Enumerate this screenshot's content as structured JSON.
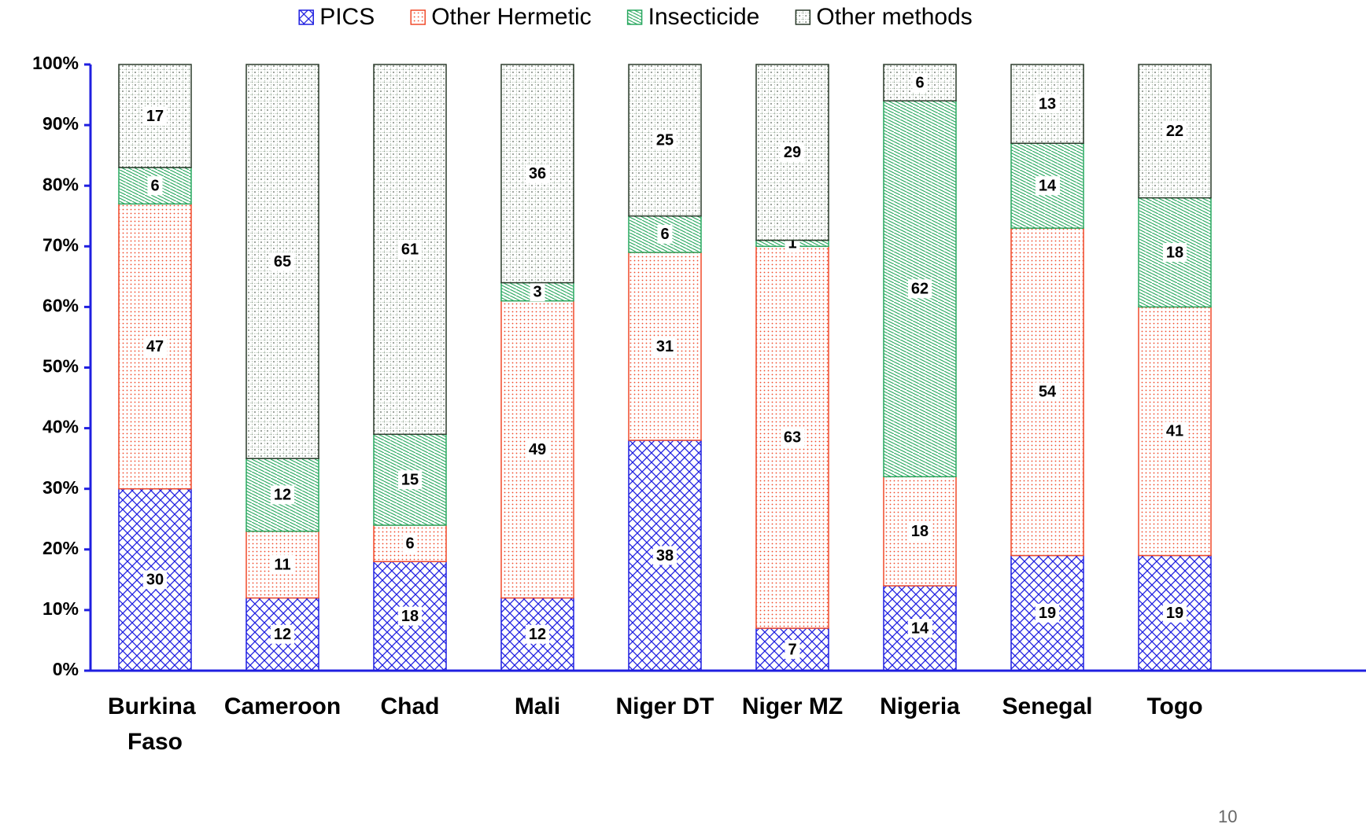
{
  "chart_data": {
    "type": "stacked_bar",
    "categories": [
      "Burkina Faso",
      "Cameroon",
      "Chad",
      "Mali",
      "Niger DT",
      "Niger MZ",
      "Nigeria",
      "Senegal",
      "Togo"
    ],
    "series": [
      {
        "name": "PICS",
        "color": "#1f1fe0",
        "values": [
          30,
          12,
          18,
          12,
          38,
          7,
          14,
          19,
          19
        ]
      },
      {
        "name": "Other Hermetic",
        "color": "#f04a2a",
        "values": [
          47,
          11,
          6,
          49,
          31,
          63,
          18,
          54,
          41
        ]
      },
      {
        "name": "Insecticide",
        "color": "#2aa860",
        "values": [
          6,
          12,
          15,
          3,
          6,
          1,
          62,
          14,
          18
        ]
      },
      {
        "name": "Other methods",
        "color": "#2a3a2a",
        "values": [
          17,
          65,
          61,
          36,
          25,
          29,
          6,
          13,
          22
        ]
      }
    ],
    "ylim": [
      0,
      100
    ],
    "yticks": [
      {
        "value": 0,
        "label": "0%"
      },
      {
        "value": 10,
        "label": "10%"
      },
      {
        "value": 20,
        "label": "20%"
      },
      {
        "value": 30,
        "label": "30%"
      },
      {
        "value": 40,
        "label": "40%"
      },
      {
        "value": 50,
        "label": "50%"
      },
      {
        "value": 60,
        "label": "60%"
      },
      {
        "value": 70,
        "label": "70%"
      },
      {
        "value": 80,
        "label": "80%"
      },
      {
        "value": 90,
        "label": "90%"
      },
      {
        "value": 100,
        "label": "100%"
      }
    ],
    "legend": "top"
  },
  "slide_number": "10"
}
